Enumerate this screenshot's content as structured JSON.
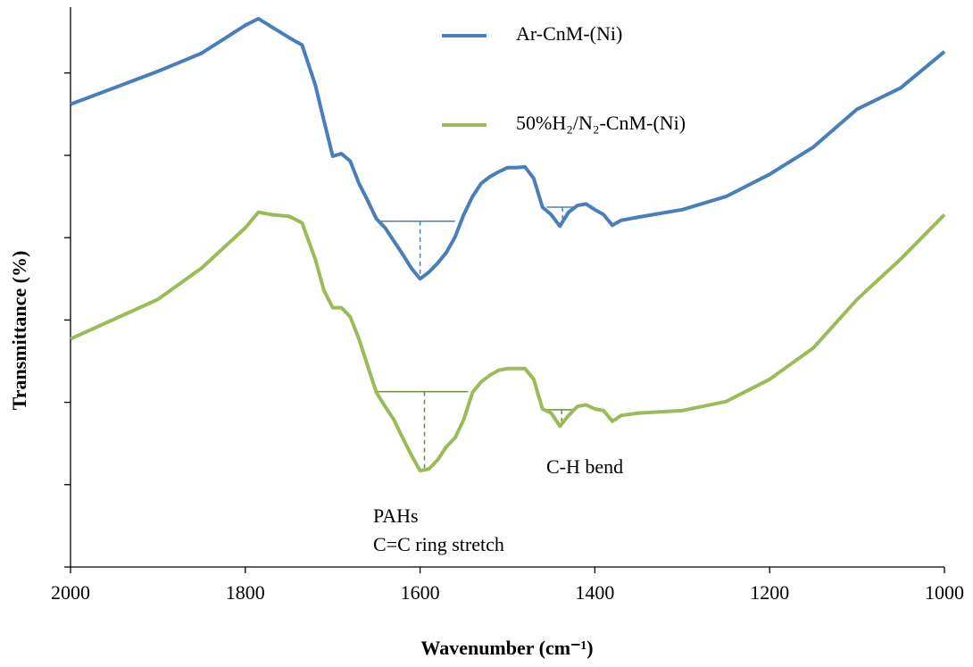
{
  "chart_data": {
    "type": "line",
    "xlabel": "Wavenumber (cm⁻¹)",
    "ylabel": "Transmittance (%)",
    "xlim": [
      2000,
      1000
    ],
    "xticks": [
      2000,
      1800,
      1600,
      1400,
      1200,
      1000
    ],
    "ylim": [
      0,
      6.8
    ],
    "yticks": [
      0,
      1,
      2,
      3,
      4,
      5,
      6
    ],
    "x": [
      2000,
      1900,
      1850,
      1800,
      1785,
      1770,
      1750,
      1735,
      1720,
      1710,
      1700,
      1690,
      1680,
      1670,
      1660,
      1650,
      1640,
      1630,
      1620,
      1610,
      1600,
      1590,
      1580,
      1570,
      1560,
      1550,
      1540,
      1530,
      1520,
      1510,
      1500,
      1490,
      1480,
      1470,
      1460,
      1450,
      1440,
      1430,
      1420,
      1410,
      1400,
      1390,
      1380,
      1370,
      1350,
      1300,
      1250,
      1200,
      1150,
      1100,
      1050,
      1000
    ],
    "series": [
      {
        "name": "Ar-CnM-(Ni)",
        "color": "#4a7ebb",
        "values": [
          5.62,
          6.02,
          6.24,
          6.58,
          6.66,
          6.56,
          6.43,
          6.34,
          5.86,
          5.42,
          4.99,
          5.02,
          4.93,
          4.66,
          4.45,
          4.23,
          4.12,
          3.96,
          3.8,
          3.63,
          3.5,
          3.58,
          3.69,
          3.82,
          4.01,
          4.28,
          4.5,
          4.66,
          4.74,
          4.8,
          4.85,
          4.85,
          4.86,
          4.72,
          4.37,
          4.28,
          4.14,
          4.31,
          4.39,
          4.41,
          4.34,
          4.28,
          4.15,
          4.21,
          4.25,
          4.34,
          4.5,
          4.77,
          5.1,
          5.56,
          5.82,
          6.26
        ]
      },
      {
        "name": "50%H₂/N₂-CnM-(Ni)",
        "color": "#9bbb59",
        "values": [
          2.77,
          3.25,
          3.63,
          4.12,
          4.31,
          4.28,
          4.26,
          4.18,
          3.74,
          3.36,
          3.15,
          3.15,
          3.04,
          2.77,
          2.44,
          2.12,
          1.95,
          1.79,
          1.57,
          1.36,
          1.17,
          1.19,
          1.3,
          1.46,
          1.57,
          1.79,
          2.12,
          2.25,
          2.33,
          2.39,
          2.41,
          2.41,
          2.41,
          2.28,
          1.92,
          1.87,
          1.71,
          1.84,
          1.95,
          1.97,
          1.92,
          1.9,
          1.77,
          1.84,
          1.87,
          1.9,
          2.01,
          2.28,
          2.66,
          3.25,
          3.74,
          4.28
        ]
      }
    ],
    "peak_markers": [
      {
        "color": "#4a7ebb",
        "x1": 1645,
        "x2": 1560,
        "y": 4.2,
        "xpeak": 1600,
        "ypeak": 3.5
      },
      {
        "color": "#4a7ebb",
        "x1": 1455,
        "x2": 1420,
        "y": 4.37,
        "xpeak": 1437,
        "ypeak": 4.23
      },
      {
        "color": "#6f8a3c",
        "x1": 1650,
        "x2": 1545,
        "y": 2.13,
        "xpeak": 1595,
        "ypeak": 1.17
      },
      {
        "color": "#6f8a3c",
        "x1": 1455,
        "x2": 1425,
        "y": 1.91,
        "xpeak": 1438,
        "ypeak": 1.77
      }
    ],
    "annotations": [
      "PAHs",
      "C=C ring stretch",
      "C-H bend"
    ]
  }
}
